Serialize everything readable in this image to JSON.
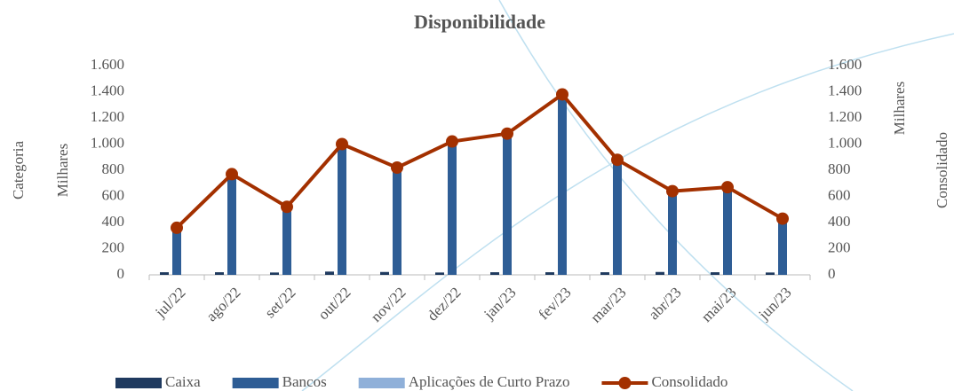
{
  "chart_data": {
    "type": "bar_line",
    "title": "Disponibilidade",
    "y_label": "Milhares",
    "y2_label": "Milhares",
    "left_label": "Categoria",
    "right_label": "Consolidado",
    "categories": [
      "jul/22",
      "ago/22",
      "set/22",
      "out/22",
      "nov/22",
      "dez/22",
      "jan/23",
      "fev/23",
      "mar/23",
      "abr/23",
      "mai/23",
      "jun/23"
    ],
    "series": [
      {
        "name": "Caixa",
        "type": "bar",
        "color": "#1f3a5f",
        "values": [
          20,
          20,
          18,
          25,
          22,
          18,
          20,
          20,
          20,
          22,
          20,
          18
        ]
      },
      {
        "name": "Bancos",
        "type": "bar",
        "color": "#2e5d95",
        "values": [
          340,
          750,
          500,
          975,
          800,
          1000,
          1060,
          1360,
          860,
          620,
          650,
          410
        ]
      },
      {
        "name": "Aplicações de Curto Prazo",
        "type": "bar",
        "color": "#8fb0d9",
        "values": [
          0,
          0,
          0,
          0,
          0,
          0,
          0,
          0,
          0,
          0,
          0,
          0
        ]
      },
      {
        "name": "Consolidado",
        "type": "line",
        "axis": "y2",
        "color": "#a33000",
        "values": [
          360,
          770,
          520,
          1000,
          820,
          1020,
          1080,
          1380,
          880,
          640,
          670,
          430
        ]
      }
    ],
    "ylim": [
      0,
      1600
    ],
    "yticks": [
      0,
      200,
      400,
      600,
      800,
      {
        "value": 1000,
        "label": "1.000"
      },
      {
        "value": 1200,
        "label": "1.200"
      },
      {
        "value": 1400,
        "label": "1.400"
      },
      {
        "value": 1600,
        "label": "1.600"
      }
    ],
    "y2lim": [
      0,
      1600
    ],
    "y2ticks": [
      0,
      200,
      400,
      600,
      800,
      {
        "value": 1000,
        "label": "1.000"
      },
      {
        "value": 1200,
        "label": "1.200"
      },
      {
        "value": 1400,
        "label": "1.400"
      },
      {
        "value": 1600,
        "label": "1.600"
      }
    ],
    "legend": "bottom"
  }
}
